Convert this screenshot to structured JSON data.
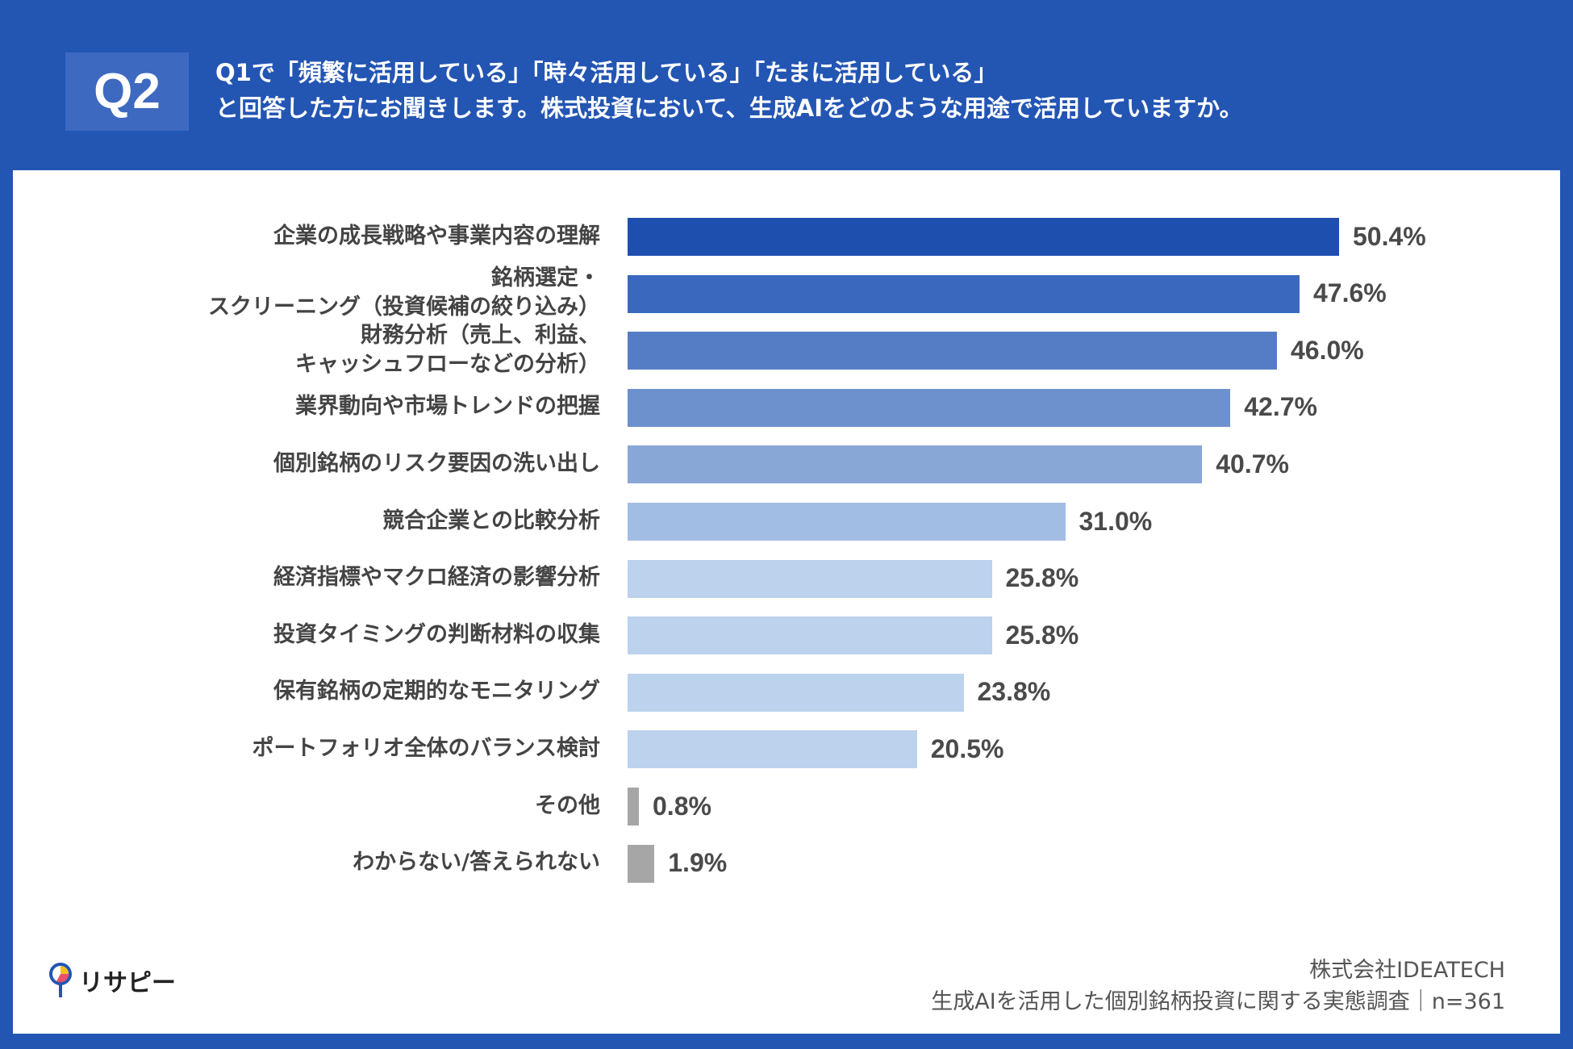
{
  "header": {
    "q_label": "Q2",
    "title_line1": "Q1で「頻繁に活用している」「時々活用している」「たまに活用している」",
    "title_line2": "と回答した方にお聞きします。株式投資において、生成AIをどのような用途で活用していますか。"
  },
  "chart_data": {
    "type": "bar",
    "orientation": "horizontal",
    "categories": [
      "企業の成長戦略や事業内容の理解",
      "銘柄選定・\nスクリーニング（投資候補の絞り込み）",
      "財務分析（売上、利益、\nキャッシュフローなどの分析）",
      "業界動向や市場トレンドの把握",
      "個別銘柄のリスク要因の洗い出し",
      "競合企業との比較分析",
      "経済指標やマクロ経済の影響分析",
      "投資タイミングの判断材料の収集",
      "保有銘柄の定期的なモニタリング",
      "ポートフォリオ全体のバランス検討",
      "その他",
      "わからない/答えられない"
    ],
    "values": [
      50.4,
      47.6,
      46.0,
      42.7,
      40.7,
      31.0,
      25.8,
      25.8,
      23.8,
      20.5,
      0.8,
      1.9
    ],
    "value_labels": [
      "50.4%",
      "47.6%",
      "46.0%",
      "42.7%",
      "40.7%",
      "31.0%",
      "25.8%",
      "25.8%",
      "23.8%",
      "20.5%",
      "0.8%",
      "1.9%"
    ],
    "colors": [
      "#1e4faf",
      "#3a68bf",
      "#557dc5",
      "#6c91cd",
      "#88a7d7",
      "#a2bde3",
      "#bcd2ed",
      "#bcd2ed",
      "#bcd2ed",
      "#bcd2ed",
      "#a6a6a6",
      "#a6a6a6"
    ],
    "xlim": [
      0,
      50.4
    ],
    "grid": false
  },
  "footer": {
    "company": "株式会社IDEATECH",
    "survey": "生成AIを活用した個別銘柄投資に関する実態調査｜n=361"
  },
  "logo": {
    "text": "リサピー"
  }
}
